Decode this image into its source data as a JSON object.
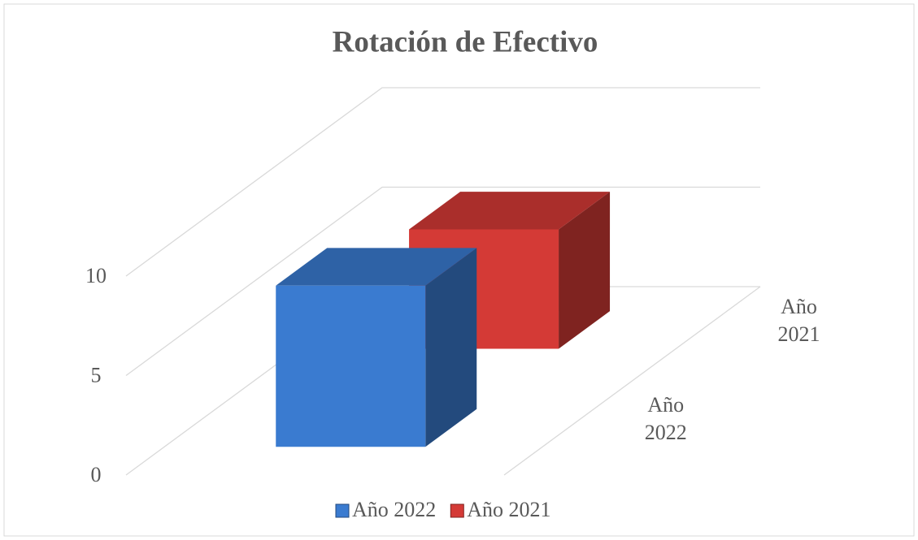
{
  "chart_data": {
    "type": "bar3d",
    "title": "Rotación de Efectivo",
    "series": [
      {
        "name": "Año 2022",
        "color": "#3a7bd0",
        "values": [
          8.1
        ]
      },
      {
        "name": "Año 2021",
        "color": "#d43a36",
        "values": [
          6.0
        ]
      }
    ],
    "ylim": [
      0,
      10
    ],
    "yticks": [
      0,
      5,
      10
    ],
    "grid": true,
    "legend": "bottom"
  }
}
